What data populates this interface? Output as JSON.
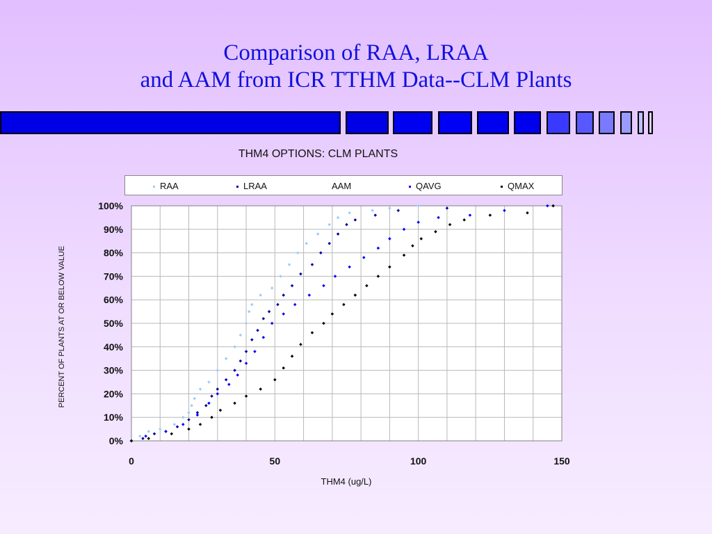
{
  "slide": {
    "title_line1": "Comparison of RAA, LRAA",
    "title_line2": "and AAM from ICR TTHM Data--CLM Plants"
  },
  "colors": {
    "title": "#1010dd",
    "bar_fill": "#0000e6",
    "RAA": "#99ccff",
    "LRAA": "#000099",
    "QAVG": "#0000ff",
    "QMAX": "#000000"
  },
  "chart_data": {
    "type": "scatter",
    "title": "THM4 OPTIONS: CLM PLANTS",
    "xlabel": "THM4 (ug/L)",
    "ylabel": "PERCENT OF PLANTS AT OR BELOW VALUE",
    "xlim": [
      0,
      150
    ],
    "ylim": [
      0,
      100
    ],
    "x_ticks": [
      "0",
      "50",
      "100",
      "150"
    ],
    "y_ticks": [
      "0%",
      "10%",
      "20%",
      "30%",
      "40%",
      "50%",
      "60%",
      "70%",
      "80%",
      "90%",
      "100%"
    ],
    "grid": true,
    "legend_position": "top",
    "legend": [
      "RAA",
      "LRAA",
      "AAM",
      "QAVG",
      "QMAX"
    ],
    "series": [
      {
        "name": "RAA",
        "color": "#99ccff",
        "points": [
          [
            0,
            0
          ],
          [
            3,
            2
          ],
          [
            6,
            4
          ],
          [
            10,
            5
          ],
          [
            15,
            7
          ],
          [
            18,
            10
          ],
          [
            20,
            12
          ],
          [
            21,
            15
          ],
          [
            22,
            18
          ],
          [
            24,
            22
          ],
          [
            27,
            25
          ],
          [
            30,
            30
          ],
          [
            33,
            35
          ],
          [
            36,
            40
          ],
          [
            38,
            45
          ],
          [
            40,
            50
          ],
          [
            41,
            55
          ],
          [
            42,
            58
          ],
          [
            45,
            62
          ],
          [
            49,
            65
          ],
          [
            52,
            70
          ],
          [
            55,
            75
          ],
          [
            58,
            80
          ],
          [
            61,
            84
          ],
          [
            65,
            88
          ],
          [
            69,
            92
          ],
          [
            72,
            95
          ],
          [
            76,
            97
          ],
          [
            84,
            98
          ],
          [
            90,
            99
          ],
          [
            100,
            100
          ]
        ]
      },
      {
        "name": "LRAA",
        "color": "#000099",
        "points": [
          [
            0,
            0
          ],
          [
            4,
            1
          ],
          [
            8,
            3
          ],
          [
            12,
            4
          ],
          [
            16,
            6
          ],
          [
            20,
            9
          ],
          [
            23,
            12
          ],
          [
            26,
            15
          ],
          [
            28,
            19
          ],
          [
            30,
            22
          ],
          [
            33,
            26
          ],
          [
            36,
            30
          ],
          [
            38,
            34
          ],
          [
            40,
            38
          ],
          [
            42,
            43
          ],
          [
            44,
            47
          ],
          [
            46,
            52
          ],
          [
            48,
            55
          ],
          [
            51,
            58
          ],
          [
            53,
            62
          ],
          [
            56,
            66
          ],
          [
            59,
            71
          ],
          [
            63,
            75
          ],
          [
            66,
            80
          ],
          [
            69,
            84
          ],
          [
            72,
            88
          ],
          [
            75,
            92
          ],
          [
            78,
            94
          ],
          [
            85,
            96
          ],
          [
            93,
            98
          ],
          [
            110,
            99
          ],
          [
            147,
            100
          ]
        ]
      },
      {
        "name": "QAVG",
        "color": "#0000ff",
        "points": [
          [
            0,
            0
          ],
          [
            5,
            2
          ],
          [
            12,
            4
          ],
          [
            18,
            7
          ],
          [
            23,
            11
          ],
          [
            27,
            16
          ],
          [
            30,
            20
          ],
          [
            34,
            24
          ],
          [
            37,
            28
          ],
          [
            40,
            33
          ],
          [
            43,
            38
          ],
          [
            46,
            44
          ],
          [
            49,
            50
          ],
          [
            53,
            54
          ],
          [
            57,
            58
          ],
          [
            62,
            62
          ],
          [
            67,
            66
          ],
          [
            71,
            70
          ],
          [
            76,
            74
          ],
          [
            81,
            78
          ],
          [
            86,
            82
          ],
          [
            90,
            86
          ],
          [
            95,
            90
          ],
          [
            100,
            93
          ],
          [
            107,
            95
          ],
          [
            118,
            96
          ],
          [
            130,
            98
          ],
          [
            145,
            100
          ]
        ]
      },
      {
        "name": "QMAX",
        "color": "#000000",
        "points": [
          [
            0,
            0
          ],
          [
            6,
            1
          ],
          [
            14,
            3
          ],
          [
            20,
            5
          ],
          [
            24,
            7
          ],
          [
            28,
            10
          ],
          [
            31,
            13
          ],
          [
            36,
            16
          ],
          [
            40,
            19
          ],
          [
            45,
            22
          ],
          [
            50,
            26
          ],
          [
            53,
            31
          ],
          [
            56,
            36
          ],
          [
            59,
            41
          ],
          [
            63,
            46
          ],
          [
            67,
            50
          ],
          [
            70,
            54
          ],
          [
            74,
            58
          ],
          [
            78,
            62
          ],
          [
            82,
            66
          ],
          [
            86,
            70
          ],
          [
            90,
            74
          ],
          [
            95,
            79
          ],
          [
            98,
            83
          ],
          [
            101,
            86
          ],
          [
            106,
            89
          ],
          [
            111,
            92
          ],
          [
            116,
            94
          ],
          [
            125,
            96
          ],
          [
            138,
            97
          ],
          [
            147,
            100
          ]
        ]
      }
    ]
  }
}
